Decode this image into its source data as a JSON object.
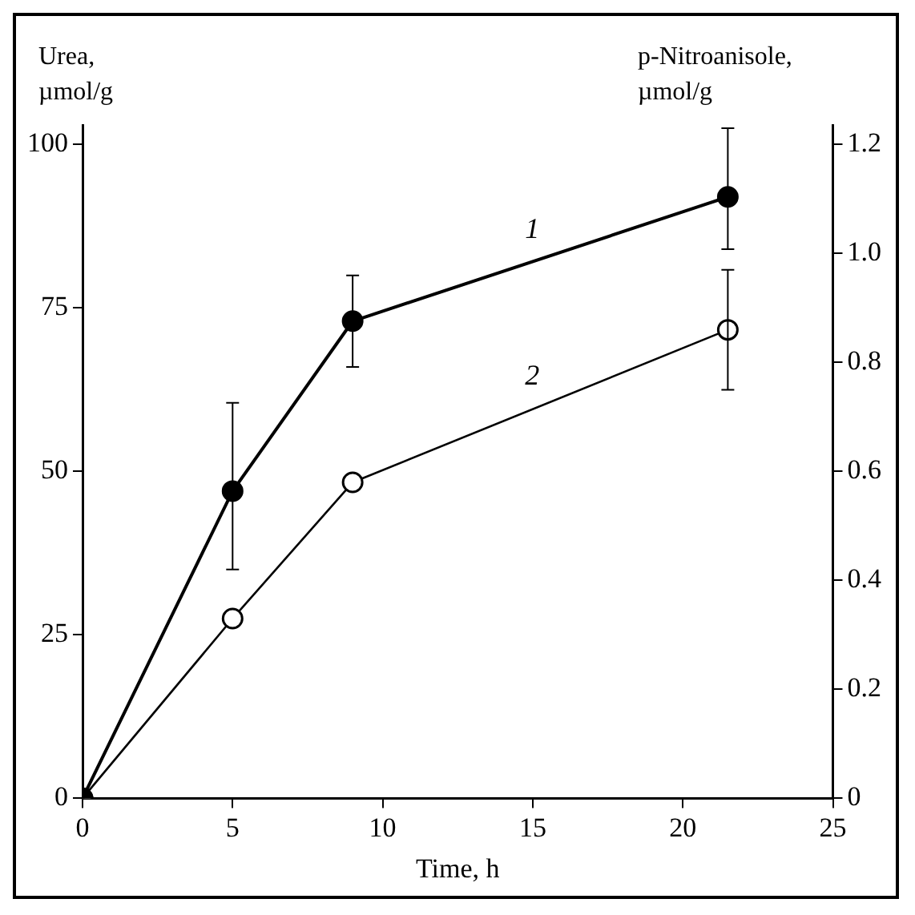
{
  "chart_data": {
    "type": "line",
    "xlabel": "Time, h",
    "ylabel": "Urea, µmol/g",
    "y2label": "p-Nitroanisole, µmol/g",
    "x": [
      0,
      5,
      9,
      21.5
    ],
    "series": [
      {
        "color": "#000000",
        "values": [
          0,
          47,
          73,
          92
        ],
        "errors": [
          null,
          [
            35,
            60.5
          ],
          [
            66,
            80
          ],
          [
            84,
            102.5
          ]
        ]
      },
      {
        "color": "#000000",
        "axis": "y2",
        "values": [
          0,
          0.33,
          0.58,
          0.86
        ],
        "errors": [
          null,
          null,
          null,
          [
            0.75,
            0.97
          ]
        ]
      }
    ],
    "xlim": [
      0,
      25
    ],
    "xticks": [
      0,
      5,
      10,
      15,
      20,
      25
    ],
    "ylim": [
      0,
      103
    ],
    "yticks": [
      0,
      25,
      50,
      75,
      100
    ],
    "y2lim": [
      0,
      1.236
    ],
    "y2ticks": [
      0,
      {
        "value": 0.2,
        "label": "0.2"
      },
      {
        "value": 0.4,
        "label": "0.4"
      },
      {
        "value": 0.6,
        "label": "0.6"
      },
      {
        "value": 0.8,
        "label": "0.8"
      },
      {
        "value": 1,
        "label": "1.0"
      },
      {
        "value": 1.2,
        "label": "1.2"
      }
    ],
    "annotations": [
      "1",
      "2"
    ],
    "marker": "circle",
    "line_style": "solid",
    "grid": false,
    "legend": false
  }
}
